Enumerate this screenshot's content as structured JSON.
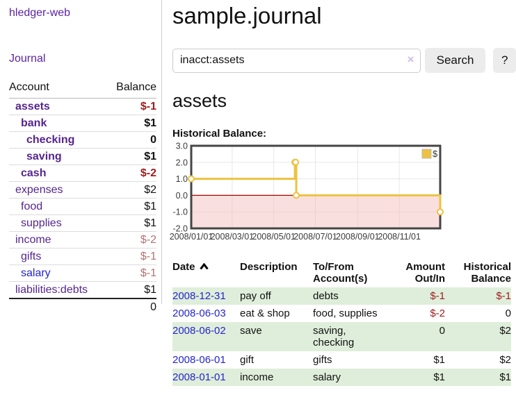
{
  "colors": {
    "link_purple": "#55258f",
    "link_blue": "#2525cb",
    "negative_strong": "#9e1c1c",
    "negative_muted": "#b47272",
    "row_green": "#dfeeda",
    "chart_gold": "#edc240"
  },
  "sidebar": {
    "brand": "hledger-web",
    "nav": {
      "journal": "Journal"
    },
    "headers": {
      "account": "Account",
      "balance": "Balance"
    },
    "accounts": [
      {
        "name": "assets",
        "balance": "$-1"
      },
      {
        "name": "bank",
        "balance": "$1"
      },
      {
        "name": "checking",
        "balance": "0"
      },
      {
        "name": "saving",
        "balance": "$1"
      },
      {
        "name": "cash",
        "balance": "$-2"
      },
      {
        "name": "expenses",
        "balance": "$2"
      },
      {
        "name": "food",
        "balance": "$1"
      },
      {
        "name": "supplies",
        "balance": "$1"
      },
      {
        "name": "income",
        "balance": "$-2"
      },
      {
        "name": "gifts",
        "balance": "$-1"
      },
      {
        "name": "salary",
        "balance": "$-1"
      },
      {
        "name": "liabilities:debts",
        "balance": "$1"
      }
    ],
    "total": "0"
  },
  "main": {
    "title": "sample.journal",
    "account_heading": "assets",
    "chart_label": "Historical Balance:"
  },
  "search": {
    "value": "inacct:assets",
    "clear_icon": "×",
    "button": "Search",
    "help_button": "?"
  },
  "chart_data": {
    "type": "line",
    "title": "Historical Balance:",
    "step": true,
    "x_start": "2008-01-01",
    "x_end": "2008-12-31",
    "points": [
      {
        "date": "2008-01-01",
        "value": 1
      },
      {
        "date": "2008-06-01",
        "value": 2
      },
      {
        "date": "2008-06-02",
        "value": 2
      },
      {
        "date": "2008-06-03",
        "value": 0
      },
      {
        "date": "2008-12-31",
        "value": -1
      }
    ],
    "x_tick_labels": [
      "2008/01/01",
      "2008/03/01",
      "2008/05/01",
      "2008/07/01",
      "2008/09/01",
      "2008/11/01"
    ],
    "y_tick_labels": [
      "3.0",
      "2.0",
      "1.0",
      "0.0",
      "-1.0",
      "-2.0"
    ],
    "ylim": [
      -2,
      3
    ],
    "grid": true,
    "legend": {
      "position": "top-right",
      "entries": [
        {
          "label": "$",
          "color": "#edc240"
        }
      ]
    },
    "line_color": "#edc240",
    "marker_fill": "#ffffff",
    "negative_region_fill": "#f5b8b8",
    "zero_line_color": "#9c0000",
    "border_color": "#454545",
    "grid_color": "#e7e7e7"
  },
  "register": {
    "headers": {
      "date": "Date",
      "description": "Description",
      "accounts": "To/From\nAccount(s)",
      "amount": "Amount\nOut/In",
      "balance": "Historical\nBalance"
    },
    "rows": [
      {
        "date": "2008-12-31",
        "description": "pay off",
        "accounts": "debts",
        "amount": "$-1",
        "balance": "$-1"
      },
      {
        "date": "2008-06-03",
        "description": "eat & shop",
        "accounts": "food, supplies",
        "amount": "$-2",
        "balance": "0"
      },
      {
        "date": "2008-06-02",
        "description": "save",
        "accounts": "saving,\nchecking",
        "amount": "0",
        "balance": "$2"
      },
      {
        "date": "2008-06-01",
        "description": "gift",
        "accounts": "gifts",
        "amount": "$1",
        "balance": "$2"
      },
      {
        "date": "2008-01-01",
        "description": "income",
        "accounts": "salary",
        "amount": "$1",
        "balance": "$1"
      }
    ]
  }
}
